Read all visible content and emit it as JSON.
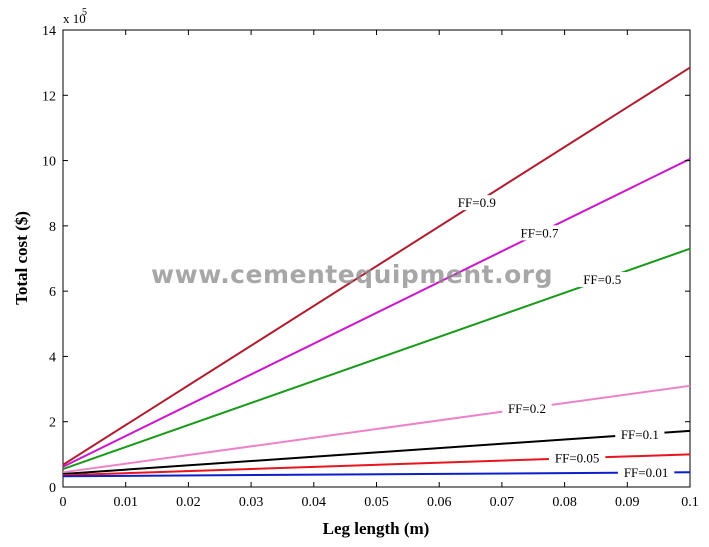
{
  "chart_data": {
    "type": "line",
    "xlabel": "Leg length (m)",
    "ylabel": "Total cost ($)",
    "y_multiplier_label": "x 10",
    "y_multiplier_exponent": "5",
    "xlim": [
      0,
      0.1
    ],
    "ylim": [
      0,
      14
    ],
    "x_ticks": [
      0,
      0.01,
      0.02,
      0.03,
      0.04,
      0.05,
      0.06,
      0.07,
      0.08,
      0.09,
      0.1
    ],
    "x_tick_labels": [
      "0",
      "0.01",
      "0.02",
      "0.03",
      "0.04",
      "0.05",
      "0.06",
      "0.07",
      "0.08",
      "0.09",
      "0.1"
    ],
    "y_ticks": [
      0,
      2,
      4,
      6,
      8,
      10,
      12,
      14
    ],
    "y_tick_labels": [
      "0",
      "2",
      "4",
      "6",
      "8",
      "10",
      "12",
      "14"
    ],
    "grid": false,
    "watermark": "www.cementequipment.org",
    "series": [
      {
        "name": "FF=0.9",
        "color": "#b01c2e",
        "x": [
          0,
          0.1
        ],
        "y": [
          0.68,
          12.85
        ],
        "label_at": 0.066
      },
      {
        "name": "FF=0.7",
        "color": "#cc17cc",
        "x": [
          0,
          0.1
        ],
        "y": [
          0.62,
          10.05
        ],
        "label_at": 0.076
      },
      {
        "name": "FF=0.5",
        "color": "#1a9a1a",
        "x": [
          0,
          0.1
        ],
        "y": [
          0.55,
          7.3
        ],
        "label_at": 0.086
      },
      {
        "name": "FF=0.2",
        "color": "#ee82c8",
        "x": [
          0,
          0.1
        ],
        "y": [
          0.45,
          3.1
        ],
        "label_at": 0.074
      },
      {
        "name": "FF=0.1",
        "color": "#000000",
        "x": [
          0,
          0.1
        ],
        "y": [
          0.4,
          1.72
        ],
        "label_at": 0.092
      },
      {
        "name": "FF=0.05",
        "color": "#e8141e",
        "x": [
          0,
          0.1
        ],
        "y": [
          0.36,
          1.0
        ],
        "label_at": 0.082
      },
      {
        "name": "FF=0.01",
        "color": "#0c1fcc",
        "x": [
          0,
          0.1
        ],
        "y": [
          0.33,
          0.45
        ],
        "label_at": 0.093
      }
    ]
  }
}
